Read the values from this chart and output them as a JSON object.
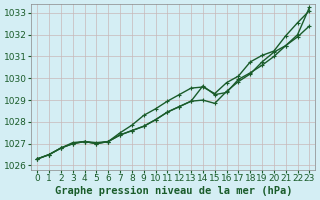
{
  "xlabel": "Graphe pression niveau de la mer (hPa)",
  "ylim": [
    1025.8,
    1033.4
  ],
  "xlim": [
    -0.5,
    23.5
  ],
  "yticks": [
    1026,
    1027,
    1028,
    1029,
    1030,
    1031,
    1032,
    1033
  ],
  "xticks": [
    0,
    1,
    2,
    3,
    4,
    5,
    6,
    7,
    8,
    9,
    10,
    11,
    12,
    13,
    14,
    15,
    16,
    17,
    18,
    19,
    20,
    21,
    22,
    23
  ],
  "bg_color": "#d4eef4",
  "grid_color": "#c8b8b8",
  "line_color": "#1a5c2a",
  "line1": [
    1026.3,
    1026.5,
    1026.8,
    1027.05,
    1027.1,
    1027.05,
    1027.1,
    1027.4,
    1027.6,
    1027.8,
    1028.1,
    1028.45,
    1028.7,
    1028.95,
    1029.65,
    1029.25,
    1029.35,
    1029.95,
    1030.25,
    1030.6,
    1031.0,
    1031.5,
    1032.0,
    1033.25
  ],
  "line2": [
    1026.3,
    1026.5,
    1026.8,
    1027.0,
    1027.1,
    1027.0,
    1027.1,
    1027.4,
    1027.6,
    1027.8,
    1028.1,
    1028.45,
    1028.7,
    1028.95,
    1029.0,
    1028.85,
    1029.4,
    1029.85,
    1030.2,
    1030.75,
    1031.2,
    1031.5,
    1031.9,
    1032.4
  ],
  "line3": [
    1026.3,
    1026.5,
    1026.8,
    1027.0,
    1027.1,
    1027.0,
    1027.1,
    1027.5,
    1027.85,
    1028.3,
    1028.6,
    1028.95,
    1029.25,
    1029.55,
    1029.6,
    1029.3,
    1029.8,
    1030.1,
    1030.75,
    1031.05,
    1031.25,
    1031.95,
    1032.55,
    1033.1
  ],
  "marker_size": 3.5,
  "linewidth": 1.0,
  "font_color": "#1a5c2a",
  "font_size": 6.5,
  "xlabel_fontsize": 7.5
}
